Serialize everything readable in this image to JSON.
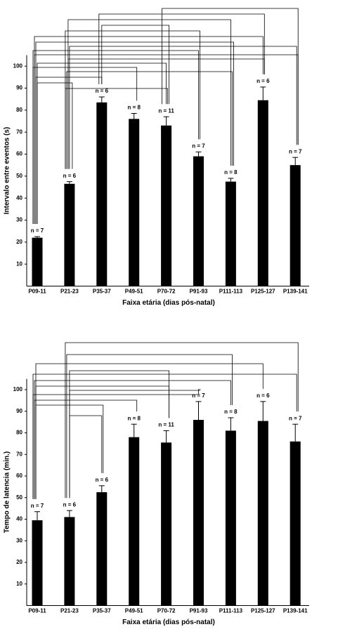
{
  "chart_data": [
    {
      "type": "bar",
      "y_label": "Intervalo entre eventos (s)",
      "x_label": "Faixa etária (dias pós-natal)",
      "categories": [
        "P09-11",
        "P21-23",
        "P35-37",
        "P49-51",
        "P70-72",
        "P91-93",
        "P111-113",
        "P125-127",
        "P139-141"
      ],
      "values": [
        22,
        46.5,
        83.5,
        76,
        73,
        59,
        47.5,
        84.5,
        55
      ],
      "errors": [
        0.5,
        1,
        2.5,
        2.5,
        4,
        2,
        1.5,
        6,
        3.5
      ],
      "n_labels": [
        "n = 7",
        "n = 6",
        "n = 6",
        "n = 8",
        "n = 11",
        "n = 7",
        "n = 8",
        "n = 6",
        "n = 7"
      ],
      "color": "#000000",
      "ylim": [
        0,
        105
      ],
      "yticks": [
        10,
        20,
        30,
        40,
        50,
        60,
        70,
        80,
        90,
        100
      ]
    },
    {
      "type": "bar",
      "y_label": "Tempo de latencia (min.)",
      "x_label": "Faixa etária (dias pós-natal)",
      "categories": [
        "P09-11",
        "P21-23",
        "P35-37",
        "P49-51",
        "P70-72",
        "P91-93",
        "P111-113",
        "P125-127",
        "P139-141"
      ],
      "values": [
        39.5,
        41,
        52.5,
        78,
        75.5,
        86,
        81,
        85.5,
        76
      ],
      "errors": [
        4,
        3,
        3,
        6,
        5.5,
        8.5,
        6,
        9,
        8
      ],
      "n_labels": [
        "n = 7",
        "n = 6",
        "n = 6",
        "n = 8",
        "n = 11",
        "n = 7",
        "n = 8",
        "n = 6",
        "n = 7"
      ],
      "color": "#000000",
      "ylim": [
        0,
        105
      ],
      "yticks": [
        10,
        20,
        30,
        40,
        50,
        60,
        70,
        80,
        90,
        100
      ]
    }
  ]
}
